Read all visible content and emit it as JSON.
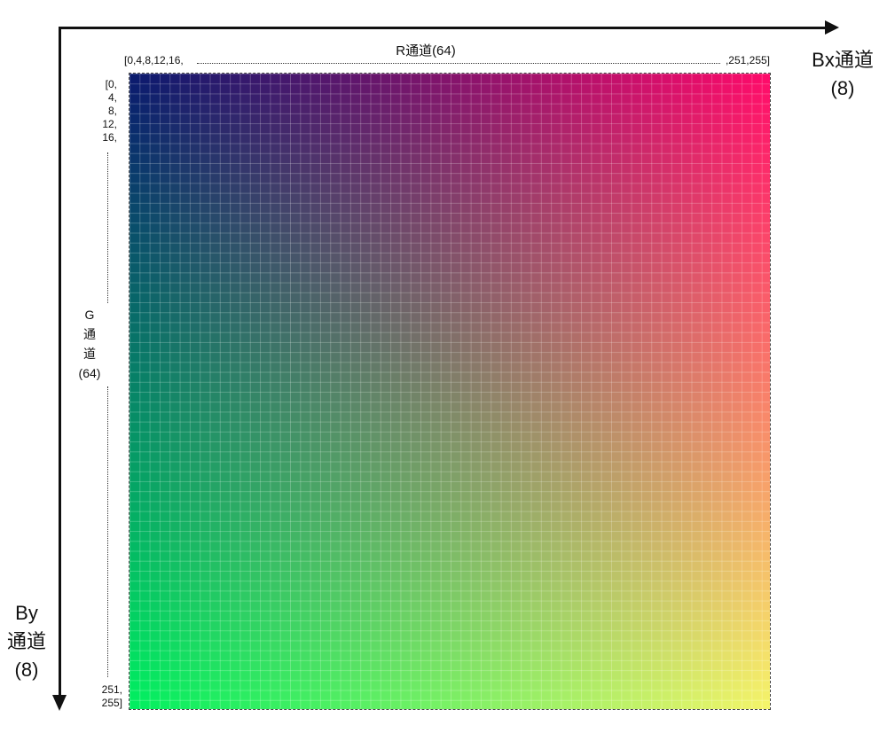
{
  "axes": {
    "bx_label": "Bx通道\n(8)",
    "by_label": "By\n通道\n(8)"
  },
  "r_channel": {
    "title": "R通道(64)",
    "ticks_start": "[0,4,8,12,16,",
    "ticks_end": ",251,255]"
  },
  "g_channel": {
    "title": "G\n通\n道\n(64)",
    "ticks_start": "[0,\n4,\n8,\n12,\n16,",
    "ticks_end": "251,\n255]"
  },
  "grid": {
    "cells_per_side": 64,
    "corner_colors": {
      "top_left": "#0a1a6e",
      "top_right": "#ff0a6a",
      "bottom_left": "#00f060",
      "bottom_right": "#f5f56a"
    }
  }
}
